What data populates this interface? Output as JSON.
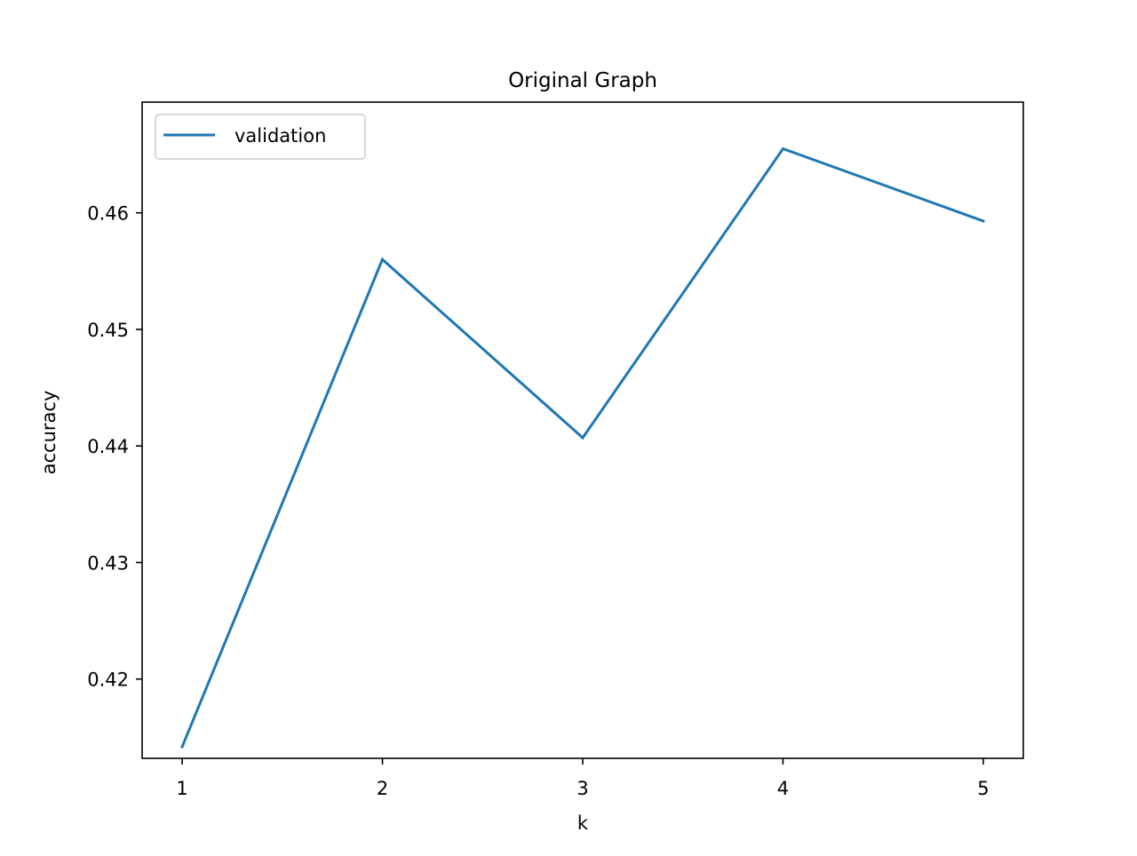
{
  "chart_data": {
    "type": "line",
    "title": "Original Graph",
    "xlabel": "k",
    "ylabel": "accuracy",
    "x": [
      1,
      2,
      3,
      4,
      5
    ],
    "xticks": [
      "1",
      "2",
      "3",
      "4",
      "5"
    ],
    "yticks": [
      "0.42",
      "0.43",
      "0.44",
      "0.45",
      "0.46"
    ],
    "xlim": [
      0.8,
      5.2
    ],
    "ylim": [
      0.4132,
      0.4695
    ],
    "grid": false,
    "legend_position": "upper-left",
    "series": [
      {
        "name": "validation",
        "color": "#1f77b4",
        "values": [
          0.4142,
          0.456,
          0.4407,
          0.4655,
          0.4593
        ]
      }
    ]
  }
}
